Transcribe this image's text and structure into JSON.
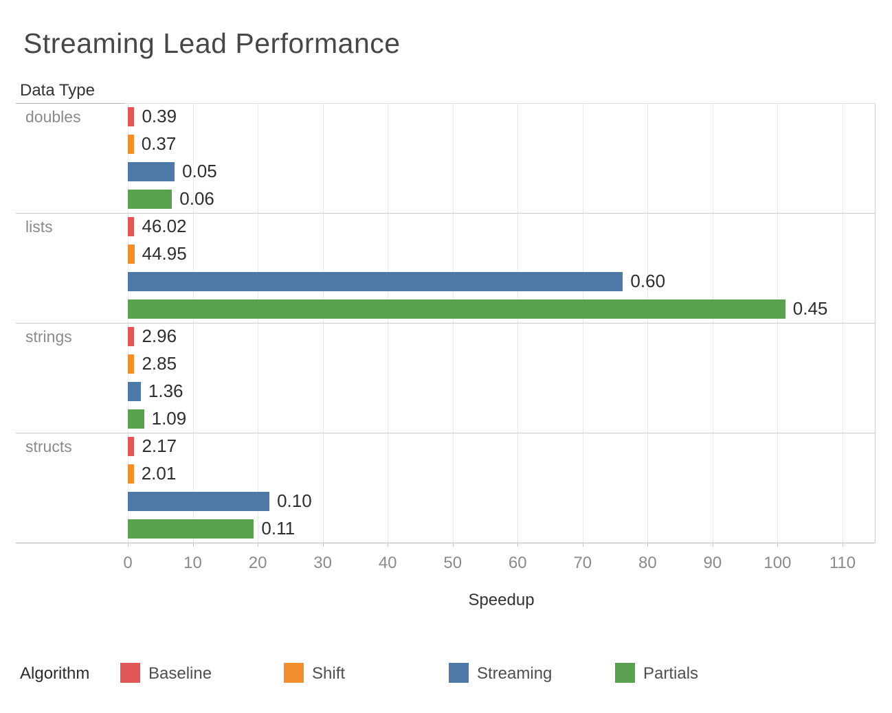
{
  "title": "Streaming Lead Performance",
  "row_header": "Data Type",
  "x_axis_title": "Speedup",
  "legend": {
    "title": "Algorithm",
    "items": [
      {
        "label": "Baseline",
        "color": "#E15759"
      },
      {
        "label": "Shift",
        "color": "#F28E2B"
      },
      {
        "label": "Streaming",
        "color": "#4E79A7"
      },
      {
        "label": "Partials",
        "color": "#59A14F"
      }
    ]
  },
  "chart_data": {
    "type": "bar",
    "orientation": "horizontal",
    "title": "Streaming Lead Performance",
    "xlabel": "Speedup",
    "ylabel": "Data Type",
    "grid": true,
    "legend_position": "bottom",
    "axis": {
      "min": 0,
      "max": 115,
      "tick_step": 10,
      "ticks": [
        0,
        10,
        20,
        30,
        40,
        50,
        60,
        70,
        80,
        90,
        100,
        110
      ]
    },
    "categories": [
      "doubles",
      "lists",
      "strings",
      "structs"
    ],
    "series_names": [
      "Baseline",
      "Shift",
      "Streaming",
      "Partials"
    ],
    "colors": {
      "Baseline": "#E15759",
      "Shift": "#F28E2B",
      "Streaming": "#4E79A7",
      "Partials": "#59A14F"
    },
    "groups": [
      {
        "category": "doubles",
        "bars": [
          {
            "algorithm": "Baseline",
            "label": "0.39",
            "speedup": 1.0
          },
          {
            "algorithm": "Shift",
            "label": "0.37",
            "speedup": 0.92
          },
          {
            "algorithm": "Streaming",
            "label": "0.05",
            "speedup": 7.2
          },
          {
            "algorithm": "Partials",
            "label": "0.06",
            "speedup": 6.8
          }
        ]
      },
      {
        "category": "lists",
        "bars": [
          {
            "algorithm": "Baseline",
            "label": "46.02",
            "speedup": 1.0
          },
          {
            "algorithm": "Shift",
            "label": "44.95",
            "speedup": 1.02
          },
          {
            "algorithm": "Streaming",
            "label": "0.60",
            "speedup": 76.2
          },
          {
            "algorithm": "Partials",
            "label": "0.45",
            "speedup": 101.2
          }
        ]
      },
      {
        "category": "strings",
        "bars": [
          {
            "algorithm": "Baseline",
            "label": "2.96",
            "speedup": 1.0
          },
          {
            "algorithm": "Shift",
            "label": "2.85",
            "speedup": 1.0
          },
          {
            "algorithm": "Streaming",
            "label": "1.36",
            "speedup": 2.0
          },
          {
            "algorithm": "Partials",
            "label": "1.09",
            "speedup": 2.5
          }
        ]
      },
      {
        "category": "structs",
        "bars": [
          {
            "algorithm": "Baseline",
            "label": "2.17",
            "speedup": 1.0
          },
          {
            "algorithm": "Shift",
            "label": "2.01",
            "speedup": 0.92
          },
          {
            "algorithm": "Streaming",
            "label": "0.10",
            "speedup": 21.8
          },
          {
            "algorithm": "Partials",
            "label": "0.11",
            "speedup": 19.4
          }
        ]
      }
    ]
  }
}
